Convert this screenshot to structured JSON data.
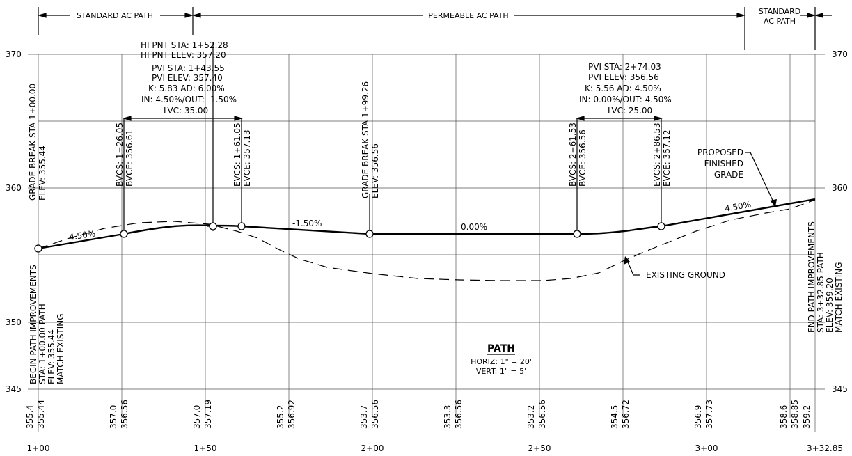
{
  "segments": {
    "left": "STANDARD AC PATH",
    "middle": "PERMEABLE AC PATH",
    "right_1": "STANDARD",
    "right_2": "AC PATH"
  },
  "elev_labels": {
    "e370_l": "370",
    "e360_l": "360",
    "e350_l": "350",
    "e345_l": "345",
    "e370_r": "370",
    "e360_r": "360",
    "e345_r": "345"
  },
  "station_labels": [
    "1+00",
    "1+50",
    "2+00",
    "2+50",
    "3+00",
    "3+32.85"
  ],
  "vc1": {
    "hi_sta": "HI PNT STA: 1+52.28",
    "hi_elev": "HI PNT ELEV: 357.20",
    "pvi_sta": "PVI STA: 1+43.55",
    "pvi_elev": "PVI ELEV: 357.40",
    "k_ad": "K: 5.83  AD: 6.00%",
    "in_out": "IN: 4.50%/OUT: -1.50%",
    "lvc": "LVC: 35.00",
    "bvcs": "BVCS: 1+26.05",
    "bvce": "BVCE: 356.61",
    "evcs": "EVCS: 1+61.05",
    "evce": "EVCE: 357.13"
  },
  "vc2": {
    "pvi_sta": "PVI STA: 2+74.03",
    "pvi_elev": "PVI ELEV: 356.56",
    "k_ad": "K: 5.56  AD: 4.50%",
    "in_out": "IN: 0.00%/OUT: 4.50%",
    "lvc": "LVC: 25.00",
    "bvcs": "BVCS: 2+61.53",
    "bvce": "BVCE: 356.56",
    "evcs": "EVCS: 2+86.53",
    "evce": "EVCE: 357.12"
  },
  "grade_break_1": {
    "sta": "GRADE BREAK STA 1+00.00",
    "elev": "ELEV: 355.44"
  },
  "grade_break_2": {
    "sta": "GRADE BREAK STA 1+99.26",
    "elev": "ELEV: 356.56"
  },
  "begin": {
    "l1": "BEGIN PATH IMPROVEMENTS",
    "l2": "STA: 1+00.00 PATH",
    "l3": "ELEV: 355.44",
    "l4": "MATCH EXISTING"
  },
  "end": {
    "l1": "END PATH IMPROVEMENTS",
    "l2": "STA: 3+32.85 PATH",
    "l3": "ELEV: 359.20",
    "l4": "MATCH EXISTING"
  },
  "grades": {
    "g1": "4.50%",
    "g2": "-1.50%",
    "g3": "0.00%",
    "g4": "4.50%"
  },
  "callouts": {
    "proposed_1": "PROPOSED",
    "proposed_2": "FINISHED",
    "proposed_3": "GRADE",
    "existing": "EXISTING GROUND"
  },
  "title": {
    "main": "PATH",
    "horiz": "HORIZ: 1\" = 20'",
    "vert": "VERT: 1\" = 5'"
  },
  "bottom_pairs": [
    {
      "existing": "355.4",
      "proposed": "355.44"
    },
    {
      "existing": "357.0",
      "proposed": "356.56"
    },
    {
      "existing": "357.0",
      "proposed": "357.19"
    },
    {
      "existing": "355.2",
      "proposed": "356.92"
    },
    {
      "existing": "353.7",
      "proposed": "356.56"
    },
    {
      "existing": "353.3",
      "proposed": "356.56"
    },
    {
      "existing": "353.2",
      "proposed": "356.56"
    },
    {
      "existing": "354.5",
      "proposed": "356.72"
    },
    {
      "existing": "356.9",
      "proposed": "357.73"
    },
    {
      "existing": "358.6",
      "proposed": "358.85"
    }
  ],
  "bottom_end": "359.2"
}
